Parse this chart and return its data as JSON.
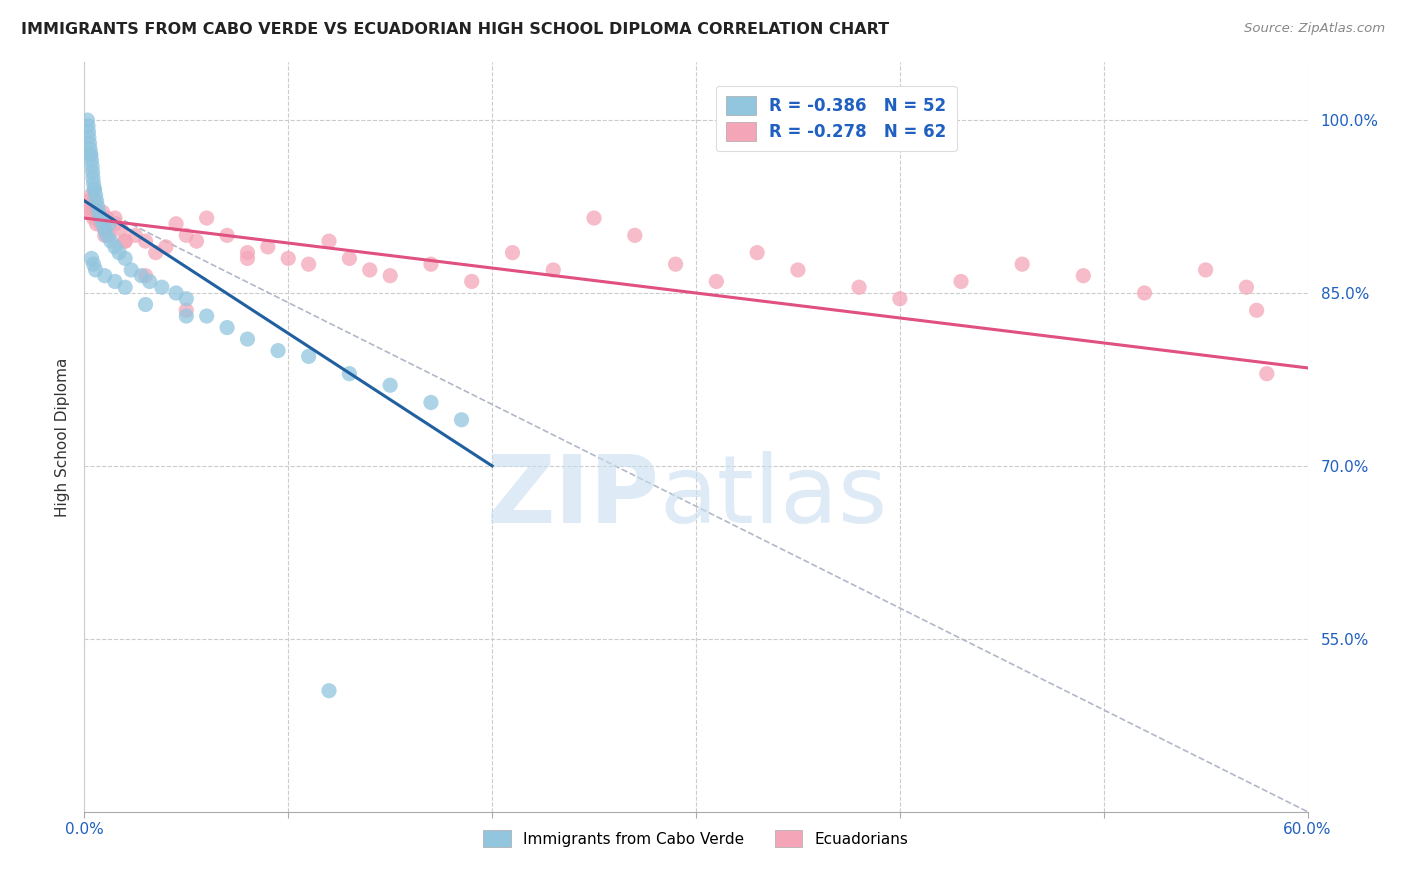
{
  "title": "IMMIGRANTS FROM CABO VERDE VS ECUADORIAN HIGH SCHOOL DIPLOMA CORRELATION CHART",
  "source": "Source: ZipAtlas.com",
  "ylabel": "High School Diploma",
  "yticks": [
    100.0,
    85.0,
    70.0,
    55.0
  ],
  "ytick_labels": [
    "100.0%",
    "85.0%",
    "70.0%",
    "55.0%"
  ],
  "xmin": 0.0,
  "xmax": 60.0,
  "ymin": 40.0,
  "ymax": 105.0,
  "legend_r1": "R = -0.386",
  "legend_n1": "N = 52",
  "legend_r2": "R = -0.278",
  "legend_n2": "N = 62",
  "color_blue": "#92c5de",
  "color_pink": "#f4a6b8",
  "color_blue_line": "#2060a0",
  "color_pink_line": "#e05080",
  "color_legend_text": "#2060c0",
  "cabo_verde_x": [
    0.15,
    0.18,
    0.2,
    0.22,
    0.25,
    0.28,
    0.3,
    0.32,
    0.35,
    0.38,
    0.4,
    0.42,
    0.45,
    0.48,
    0.5,
    0.55,
    0.6,
    0.65,
    0.7,
    0.8,
    0.9,
    1.0,
    1.1,
    1.2,
    1.3,
    1.5,
    1.7,
    2.0,
    2.3,
    2.8,
    3.2,
    3.8,
    4.5,
    5.0,
    6.0,
    7.0,
    8.0,
    9.5,
    11.0,
    13.0,
    15.0,
    17.0,
    18.5,
    0.35,
    0.45,
    0.55,
    1.0,
    1.5,
    2.0,
    3.0,
    5.0,
    12.0
  ],
  "cabo_verde_y": [
    100.0,
    99.5,
    99.0,
    98.5,
    98.0,
    97.5,
    97.0,
    97.0,
    96.5,
    96.0,
    95.5,
    95.0,
    94.5,
    94.0,
    94.0,
    93.5,
    93.0,
    92.5,
    92.0,
    91.5,
    91.0,
    90.5,
    90.0,
    91.0,
    89.5,
    89.0,
    88.5,
    88.0,
    87.0,
    86.5,
    86.0,
    85.5,
    85.0,
    84.5,
    83.0,
    82.0,
    81.0,
    80.0,
    79.5,
    78.0,
    77.0,
    75.5,
    74.0,
    88.0,
    87.5,
    87.0,
    86.5,
    86.0,
    85.5,
    84.0,
    83.0,
    50.5
  ],
  "ecuadorian_x": [
    0.2,
    0.25,
    0.3,
    0.35,
    0.4,
    0.45,
    0.5,
    0.55,
    0.6,
    0.65,
    0.7,
    0.8,
    0.9,
    1.0,
    1.1,
    1.2,
    1.5,
    1.8,
    2.0,
    2.5,
    3.0,
    3.5,
    4.0,
    4.5,
    5.0,
    5.5,
    6.0,
    7.0,
    8.0,
    9.0,
    10.0,
    11.0,
    12.0,
    13.0,
    14.0,
    15.0,
    17.0,
    19.0,
    21.0,
    23.0,
    25.0,
    27.0,
    29.0,
    31.0,
    33.0,
    35.0,
    38.0,
    40.0,
    43.0,
    46.0,
    49.0,
    52.0,
    55.0,
    57.0,
    58.0,
    1.0,
    1.5,
    2.0,
    3.0,
    5.0,
    8.0,
    57.5
  ],
  "ecuadorian_y": [
    92.5,
    93.0,
    92.0,
    93.5,
    92.0,
    91.5,
    93.0,
    92.5,
    91.0,
    92.0,
    91.5,
    91.0,
    92.0,
    90.5,
    91.5,
    90.0,
    91.0,
    90.5,
    89.5,
    90.0,
    89.5,
    88.5,
    89.0,
    91.0,
    90.0,
    89.5,
    91.5,
    90.0,
    88.5,
    89.0,
    88.0,
    87.5,
    89.5,
    88.0,
    87.0,
    86.5,
    87.5,
    86.0,
    88.5,
    87.0,
    91.5,
    90.0,
    87.5,
    86.0,
    88.5,
    87.0,
    85.5,
    84.5,
    86.0,
    87.5,
    86.5,
    85.0,
    87.0,
    85.5,
    78.0,
    90.0,
    91.5,
    89.5,
    86.5,
    83.5,
    88.0,
    83.5
  ],
  "blue_line_x0": 0.0,
  "blue_line_x1": 20.0,
  "blue_line_y0": 93.0,
  "blue_line_y1": 70.0,
  "pink_line_x0": 0.0,
  "pink_line_x1": 60.0,
  "pink_line_y0": 91.5,
  "pink_line_y1": 78.5,
  "gray_dash_x0": 0.0,
  "gray_dash_x1": 60.0,
  "gray_dash_y0": 93.0,
  "gray_dash_y1": 40.0
}
